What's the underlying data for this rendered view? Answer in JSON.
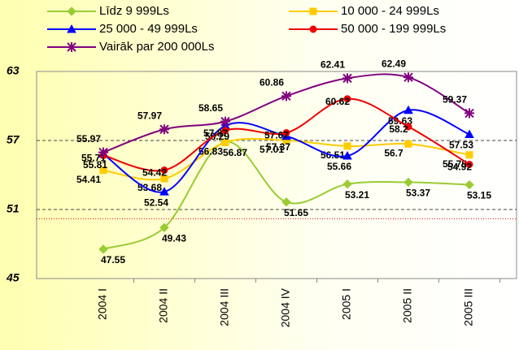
{
  "chart_data": {
    "type": "line",
    "categories": [
      "2004 I",
      "2004 II",
      "2004 III",
      "2004 IV",
      "2005 I",
      "2005 II",
      "2005 III"
    ],
    "series": [
      {
        "name": "Līdz 9 999Ls",
        "color": "#99cc33",
        "marker": "diamond",
        "values": [
          47.55,
          49.43,
          56.87,
          51.65,
          53.21,
          53.37,
          53.15
        ]
      },
      {
        "name": "10 000 - 24 999Ls",
        "color": "#ffcc00",
        "marker": "square",
        "values": [
          54.41,
          53.68,
          56.83,
          57.01,
          56.51,
          56.7,
          55.75
        ]
      },
      {
        "name": "25 000 - 49 999Ls",
        "color": "#0000ff",
        "marker": "triangle",
        "values": [
          55.81,
          52.54,
          58.29,
          57.37,
          55.66,
          59.63,
          57.53
        ]
      },
      {
        "name": "50 000 - 199 999Ls",
        "color": "#ee0000",
        "marker": "circle",
        "values": [
          55.71,
          54.42,
          57.87,
          57.67,
          60.62,
          58.2,
          54.92
        ]
      },
      {
        "name": "Vairāk par 200 000Ls",
        "color": "#800080",
        "marker": "star",
        "values": [
          55.97,
          57.97,
          58.65,
          60.86,
          62.41,
          62.49,
          59.37
        ]
      }
    ],
    "ylim": [
      45,
      63
    ],
    "yticks": [
      45,
      51,
      57,
      63
    ],
    "grid": true,
    "reference_line": {
      "value": 50.2,
      "color": "#e00000"
    }
  }
}
